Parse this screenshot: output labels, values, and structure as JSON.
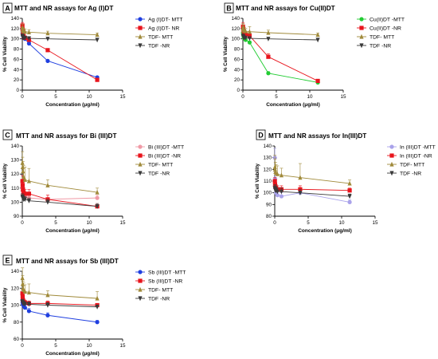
{
  "colors": {
    "mtt_blue": "#1f3fe0",
    "nr_red": "#e8141c",
    "tdf_mtt_olive": "#a08a3a",
    "tdf_nr_black": "#3a3a3a",
    "cu_green": "#22cc33",
    "bi_mtt_pink": "#f09aa6",
    "in_mtt_lavender": "#a9a2ea"
  },
  "chart_data": [
    {
      "panel": "A",
      "type": "line",
      "title": "MTT and NR assays for Ag (I)DT",
      "xlabel": "Concentration (μg/ml)",
      "ylabel": "% Cell Viability",
      "xlim": [
        0,
        15
      ],
      "ylim": [
        0,
        140
      ],
      "x_ticks": [
        "0",
        "5",
        "10",
        "15"
      ],
      "y_ticks": [
        "0",
        "20",
        "40",
        "60",
        "80",
        "100",
        "120",
        "140"
      ],
      "legend_position": "right",
      "series": [
        {
          "name": "Ag (I)DT- MTT",
          "color": "#1f3fe0",
          "marker": "circle",
          "x": [
            0.02,
            0.05,
            0.1,
            0.2,
            0.4,
            1.0,
            3.8,
            11.2
          ],
          "y": [
            118,
            112,
            106,
            103,
            100,
            91,
            57,
            25
          ],
          "err": [
            5,
            4,
            3,
            3,
            3,
            3,
            2,
            2
          ]
        },
        {
          "name": "Ag (I)DT- NR",
          "color": "#e8141c",
          "marker": "square",
          "x": [
            0.02,
            0.05,
            0.1,
            0.2,
            0.4,
            1.0,
            3.8,
            11.2
          ],
          "y": [
            126,
            118,
            110,
            105,
            102,
            98,
            78,
            20
          ],
          "err": [
            6,
            5,
            4,
            3,
            3,
            3,
            3,
            3
          ]
        },
        {
          "name": "TDF- MTT",
          "color": "#a08a3a",
          "marker": "triangle-up",
          "x": [
            0.02,
            0.05,
            0.1,
            0.2,
            0.4,
            1.0,
            3.8,
            11.2
          ],
          "y": [
            122,
            118,
            116,
            115,
            114,
            113,
            111,
            108
          ],
          "err": [
            6,
            5,
            5,
            5,
            5,
            5,
            4,
            3
          ]
        },
        {
          "name": "TDF -NR",
          "color": "#3a3a3a",
          "marker": "triangle-down",
          "x": [
            0.02,
            0.05,
            0.1,
            0.2,
            0.4,
            1.0,
            3.8,
            11.2
          ],
          "y": [
            106,
            104,
            103,
            102,
            102,
            101,
            100,
            98
          ],
          "err": [
            3,
            3,
            3,
            3,
            3,
            3,
            3,
            2
          ]
        }
      ]
    },
    {
      "panel": "B",
      "type": "line",
      "title": "MTT and NR assays for Cu(II)DT",
      "xlabel": "Concentration (μg/ml)",
      "ylabel": "% Cell Viability",
      "xlim": [
        0,
        15
      ],
      "ylim": [
        0,
        140
      ],
      "x_ticks": [
        "0",
        "5",
        "10",
        "15"
      ],
      "y_ticks": [
        "0",
        "20",
        "40",
        "60",
        "80",
        "100",
        "120",
        "140"
      ],
      "legend_position": "right",
      "series": [
        {
          "name": "Cu(II)DT -MTT",
          "color": "#22cc33",
          "marker": "circle",
          "x": [
            0.02,
            0.05,
            0.1,
            0.2,
            0.4,
            1.0,
            3.8,
            11.2
          ],
          "y": [
            112,
            108,
            104,
            101,
            98,
            93,
            33,
            15
          ],
          "err": [
            6,
            5,
            4,
            4,
            3,
            3,
            3,
            2
          ]
        },
        {
          "name": "Cu(II)DT -NR",
          "color": "#e8141c",
          "marker": "square",
          "x": [
            0.02,
            0.05,
            0.1,
            0.2,
            0.4,
            1.0,
            3.8,
            11.2
          ],
          "y": [
            124,
            120,
            116,
            112,
            109,
            106,
            65,
            18
          ],
          "err": [
            8,
            6,
            5,
            5,
            4,
            4,
            6,
            2
          ]
        },
        {
          "name": "TDF- MTT",
          "color": "#a08a3a",
          "marker": "triangle-up",
          "x": [
            0.02,
            0.05,
            0.1,
            0.2,
            0.4,
            1.0,
            3.8,
            11.2
          ],
          "y": [
            122,
            120,
            118,
            116,
            115,
            114,
            112,
            108
          ],
          "err": [
            8,
            7,
            6,
            6,
            5,
            10,
            5,
            3
          ]
        },
        {
          "name": "TDF -NR",
          "color": "#3a3a3a",
          "marker": "triangle-down",
          "x": [
            0.02,
            0.05,
            0.1,
            0.2,
            0.4,
            1.0,
            3.8,
            11.2
          ],
          "y": [
            106,
            104,
            103,
            102,
            102,
            101,
            100,
            98
          ],
          "err": [
            3,
            3,
            3,
            3,
            3,
            3,
            3,
            2
          ]
        }
      ]
    },
    {
      "panel": "C",
      "type": "line",
      "title": "MTT and NR  assays for Bi (III)DT",
      "xlabel": "Concentration (μg/ml)",
      "ylabel": "% Cell Viability",
      "xlim": [
        0,
        15
      ],
      "ylim": [
        90,
        140
      ],
      "x_ticks": [
        "0",
        "5",
        "10",
        "15"
      ],
      "y_ticks": [
        "90",
        "100",
        "110",
        "120",
        "130",
        "140"
      ],
      "legend_position": "right",
      "series": [
        {
          "name": "Bi (III)DT -MTT",
          "color": "#f09aa6",
          "marker": "circle",
          "x": [
            0.02,
            0.05,
            0.1,
            0.2,
            0.4,
            1.0,
            3.8,
            11.2
          ],
          "y": [
            110,
            108,
            106,
            105,
            104,
            103,
            102,
            103
          ],
          "err": [
            4,
            3,
            3,
            3,
            3,
            3,
            3,
            2
          ]
        },
        {
          "name": "Bi (III)DT -NR",
          "color": "#e8141c",
          "marker": "square",
          "x": [
            0.02,
            0.05,
            0.1,
            0.2,
            0.4,
            1.0,
            3.8,
            11.2
          ],
          "y": [
            115,
            112,
            109,
            107,
            106,
            106,
            102,
            97
          ],
          "err": [
            4,
            3,
            3,
            3,
            3,
            3,
            3,
            2
          ]
        },
        {
          "name": "TDF- MTT",
          "color": "#a08a3a",
          "marker": "triangle-up",
          "x": [
            0.02,
            0.05,
            0.1,
            0.2,
            0.4,
            1.0,
            3.8,
            11.2
          ],
          "y": [
            128,
            125,
            122,
            118,
            116,
            115,
            112,
            107
          ],
          "err": [
            8,
            7,
            7,
            8,
            9,
            9,
            4,
            3
          ]
        },
        {
          "name": "TDF -NR",
          "color": "#3a3a3a",
          "marker": "triangle-down",
          "x": [
            0.02,
            0.05,
            0.1,
            0.2,
            0.4,
            1.0,
            3.8,
            11.2
          ],
          "y": [
            104,
            103,
            103,
            102,
            102,
            101,
            100,
            97
          ],
          "err": [
            2,
            2,
            2,
            2,
            2,
            2,
            2,
            2
          ]
        }
      ]
    },
    {
      "panel": "D",
      "type": "line",
      "title": "MTT and NR assays for  In(III)DT",
      "xlabel": "Concentration (μg/ml)",
      "ylabel": "% Cell Viability",
      "xlim": [
        0,
        15
      ],
      "ylim": [
        80,
        140
      ],
      "x_ticks": [
        "0",
        "5",
        "10",
        "15"
      ],
      "y_ticks": [
        "80",
        "90",
        "100",
        "110",
        "120",
        "130",
        "140"
      ],
      "legend_position": "right",
      "series": [
        {
          "name": "In (III)DT -MTT",
          "color": "#a9a2ea",
          "marker": "circle",
          "x": [
            0.02,
            0.05,
            0.1,
            0.2,
            0.4,
            1.0,
            3.8,
            11.2
          ],
          "y": [
            130,
            112,
            104,
            100,
            98,
            97,
            100,
            92
          ],
          "err": [
            8,
            6,
            5,
            4,
            3,
            3,
            2,
            2
          ]
        },
        {
          "name": "In (III)DT -NR",
          "color": "#e8141c",
          "marker": "square",
          "x": [
            0.02,
            0.05,
            0.1,
            0.2,
            0.4,
            1.0,
            3.8,
            11.2
          ],
          "y": [
            110,
            107,
            105,
            104,
            103,
            103,
            103,
            102
          ],
          "err": [
            3,
            3,
            3,
            3,
            3,
            3,
            3,
            2
          ]
        },
        {
          "name": "TDF- MTT",
          "color": "#a08a3a",
          "marker": "triangle-up",
          "x": [
            0.02,
            0.05,
            0.1,
            0.2,
            0.4,
            1.0,
            3.8,
            11.2
          ],
          "y": [
            122,
            120,
            118,
            117,
            116,
            115,
            113,
            108
          ],
          "err": [
            10,
            9,
            8,
            7,
            7,
            6,
            12,
            3
          ]
        },
        {
          "name": "TDF -NR",
          "color": "#3a3a3a",
          "marker": "triangle-down",
          "x": [
            0.02,
            0.05,
            0.1,
            0.2,
            0.4,
            1.0,
            3.8,
            11.2
          ],
          "y": [
            104,
            103,
            102,
            102,
            101,
            101,
            100,
            97
          ],
          "err": [
            3,
            3,
            3,
            3,
            3,
            3,
            3,
            2
          ]
        }
      ]
    },
    {
      "panel": "E",
      "type": "line",
      "title": "MTT and NR assays for Sb (III)DT",
      "xlabel": "Concentration (μg/ml)",
      "ylabel": "% Cell Viability",
      "xlim": [
        0,
        15
      ],
      "ylim": [
        60,
        140
      ],
      "x_ticks": [
        "0",
        "5",
        "10",
        "15"
      ],
      "y_ticks": [
        "60",
        "80",
        "100",
        "120",
        "140"
      ],
      "legend_position": "right",
      "series": [
        {
          "name": "Sb (III)DT -MTT",
          "color": "#1f3fe0",
          "marker": "circle",
          "x": [
            0.02,
            0.05,
            0.1,
            0.2,
            0.4,
            1.0,
            3.8,
            11.2
          ],
          "y": [
            106,
            103,
            101,
            99,
            97,
            93,
            88,
            80
          ],
          "err": [
            4,
            3,
            3,
            3,
            3,
            3,
            3,
            2
          ]
        },
        {
          "name": "Sb (III)DT -NR",
          "color": "#e8141c",
          "marker": "square",
          "x": [
            0.02,
            0.05,
            0.1,
            0.2,
            0.4,
            1.0,
            3.8,
            11.2
          ],
          "y": [
            114,
            110,
            106,
            104,
            103,
            102,
            102,
            100
          ],
          "err": [
            4,
            4,
            3,
            3,
            3,
            3,
            3,
            2
          ]
        },
        {
          "name": "TDF- MTT",
          "color": "#a08a3a",
          "marker": "triangle-up",
          "x": [
            0.02,
            0.05,
            0.1,
            0.2,
            0.4,
            1.0,
            3.8,
            11.2
          ],
          "y": [
            132,
            125,
            120,
            118,
            116,
            115,
            112,
            108
          ],
          "err": [
            12,
            10,
            8,
            8,
            8,
            10,
            5,
            8
          ]
        },
        {
          "name": "TDF -NR",
          "color": "#3a3a3a",
          "marker": "triangle-down",
          "x": [
            0.02,
            0.05,
            0.1,
            0.2,
            0.4,
            1.0,
            3.8,
            11.2
          ],
          "y": [
            104,
            103,
            102,
            102,
            101,
            101,
            100,
            98
          ],
          "err": [
            3,
            3,
            3,
            3,
            3,
            3,
            3,
            2
          ]
        }
      ]
    }
  ]
}
